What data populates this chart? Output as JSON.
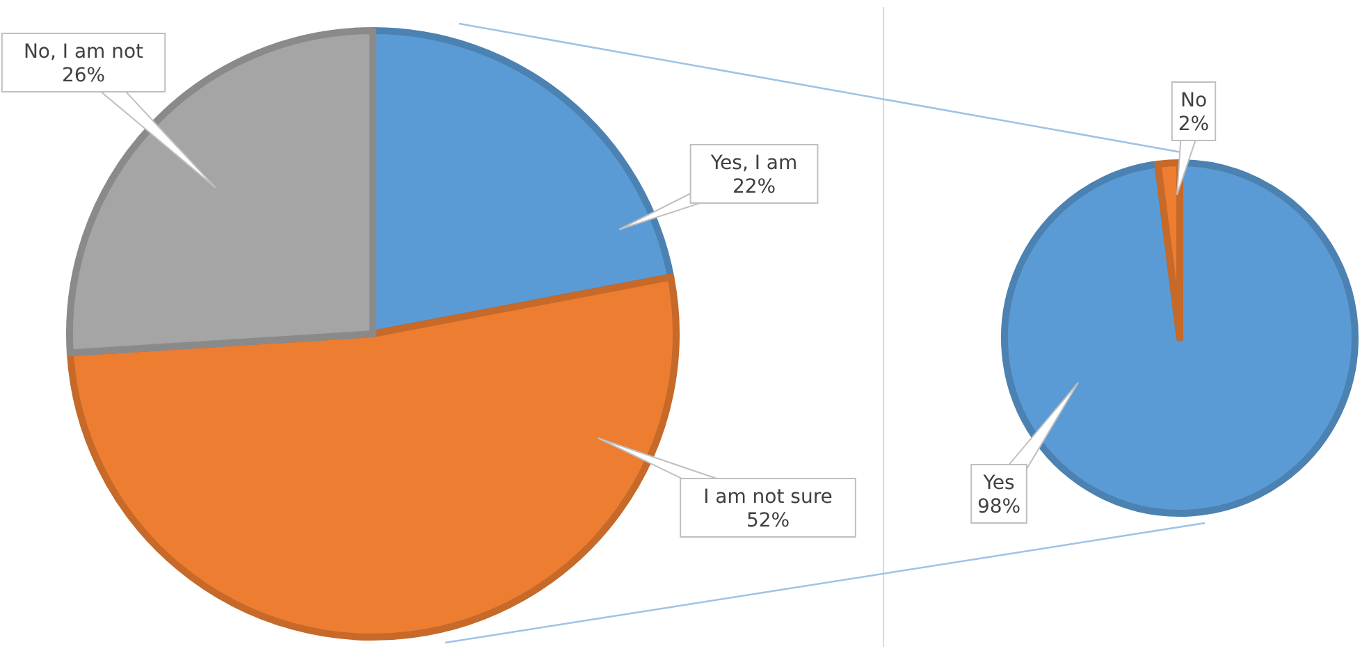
{
  "chart_data": [
    {
      "type": "pie",
      "categories": [
        "Yes, I am",
        "I am not sure",
        "No, I am not"
      ],
      "values": [
        22,
        52,
        26
      ],
      "colors": [
        "#5b9bd5",
        "#ed7d31",
        "#a5a5a5"
      ],
      "value_labels": [
        "22%",
        "52%",
        "26%"
      ]
    },
    {
      "type": "pie",
      "categories": [
        "Yes",
        "No"
      ],
      "values": [
        98,
        2
      ],
      "colors": [
        "#5b9bd5",
        "#ed7d31"
      ],
      "value_labels": [
        "98%",
        "2%"
      ]
    }
  ]
}
